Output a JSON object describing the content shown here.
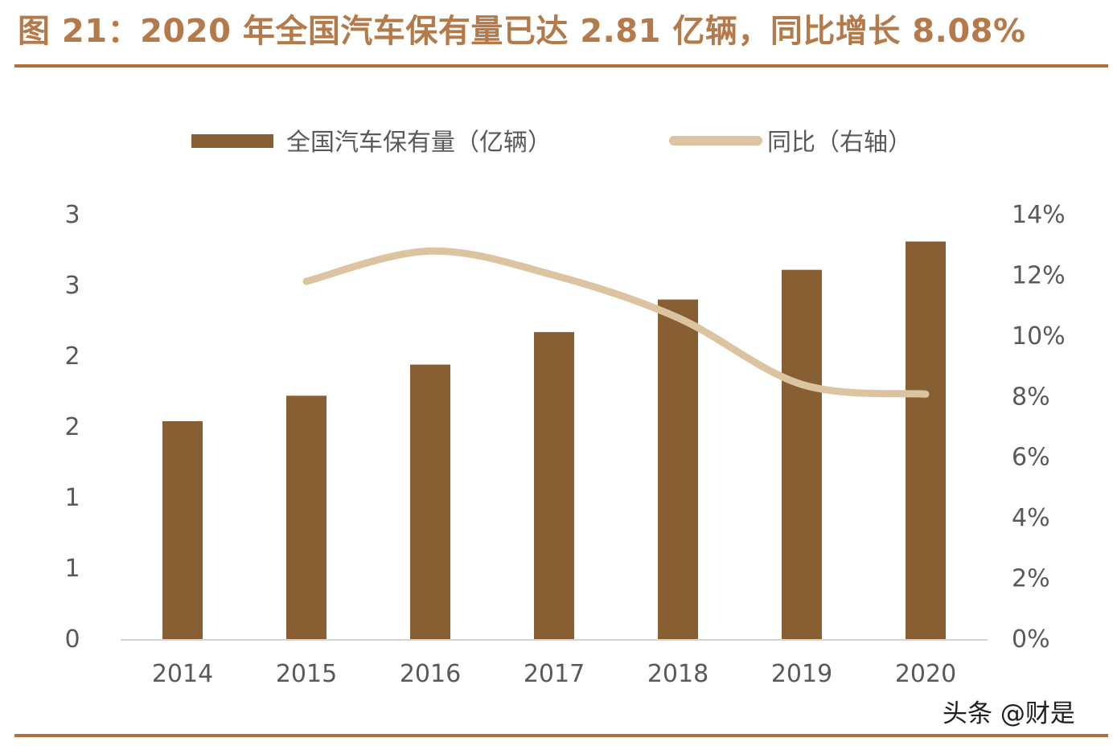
{
  "title": "图 21：2020 年全国汽车保有量已达 2.81 亿辆，同比增长 8.08%",
  "watermark": "头条 @财是",
  "colors": {
    "bar": "#875f33",
    "line": "#dcc4a1",
    "accent": "#b06f3b",
    "title": "#b57a4a",
    "axis": "#d4d4d4",
    "text": "#595959"
  },
  "chart_data": {
    "type": "bar+line",
    "categories": [
      "2014",
      "2015",
      "2016",
      "2017",
      "2018",
      "2019",
      "2020"
    ],
    "series": [
      {
        "name": "全国汽车保有量（亿辆）",
        "type": "bar",
        "axis": "left",
        "values": [
          1.54,
          1.72,
          1.94,
          2.17,
          2.4,
          2.61,
          2.81
        ]
      },
      {
        "name": "同比（右轴）",
        "type": "line",
        "axis": "right",
        "values": [
          null,
          11.8,
          12.8,
          12.0,
          10.6,
          8.4,
          8.08
        ]
      }
    ],
    "y_left": {
      "min": 0,
      "max": 3,
      "ticks": [
        0,
        0.5,
        1,
        1.5,
        2,
        2.5,
        3
      ],
      "tick_labels": [
        "0",
        "1",
        "1",
        "2",
        "2",
        "3",
        "3"
      ]
    },
    "y_right": {
      "min": 0,
      "max": 14,
      "ticks": [
        0,
        2,
        4,
        6,
        8,
        10,
        12,
        14
      ],
      "tick_labels": [
        "0%",
        "2%",
        "4%",
        "6%",
        "8%",
        "10%",
        "12%",
        "14%"
      ]
    },
    "legend_position": "top-center",
    "grid": false
  }
}
